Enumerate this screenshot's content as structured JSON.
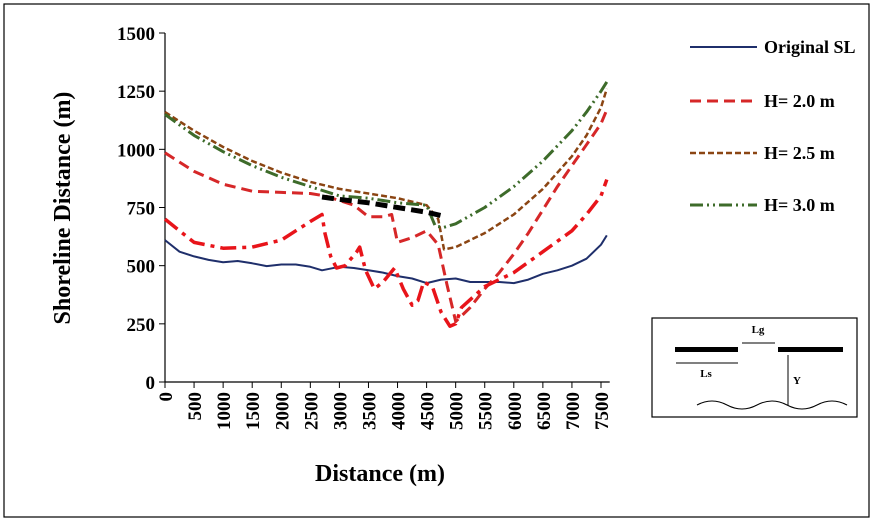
{
  "chart_data": {
    "type": "line",
    "xlabel": "Distance (m)",
    "ylabel": "Shoreline Distance (m)",
    "xlim": [
      0,
      7650
    ],
    "ylim": [
      0,
      1500
    ],
    "xticks": [
      0,
      500,
      1000,
      1500,
      2000,
      2500,
      3000,
      3500,
      4000,
      4500,
      5000,
      5500,
      6000,
      6500,
      7000,
      7500
    ],
    "yticks": [
      0,
      250,
      500,
      750,
      1000,
      1250,
      1500
    ],
    "series": [
      {
        "name": "Original SL",
        "color": "#1f2f6b",
        "style": "solid",
        "x": [
          0,
          250,
          500,
          750,
          1000,
          1250,
          1500,
          1750,
          2000,
          2250,
          2500,
          2700,
          3000,
          3250,
          3500,
          3750,
          4000,
          4250,
          4500,
          4750,
          5000,
          5250,
          5500,
          5750,
          6000,
          6250,
          6500,
          6750,
          7000,
          7250,
          7500,
          7600
        ],
        "values": [
          610,
          560,
          540,
          525,
          515,
          520,
          510,
          498,
          505,
          505,
          495,
          480,
          495,
          490,
          480,
          470,
          455,
          445,
          425,
          440,
          445,
          430,
          430,
          430,
          425,
          440,
          465,
          480,
          500,
          530,
          590,
          630
        ]
      },
      {
        "name": "H= 2.0 m",
        "color": "#d62728",
        "style": "dashed",
        "x": [
          0,
          500,
          1000,
          1500,
          2000,
          2500,
          2750,
          3000,
          3250,
          3500,
          3750,
          3900,
          4000,
          4250,
          4500,
          4700,
          4850,
          5000,
          5250,
          5500,
          5750,
          6000,
          6250,
          6500,
          6750,
          7000,
          7250,
          7500,
          7600
        ],
        "values": [
          985,
          905,
          850,
          820,
          815,
          810,
          800,
          780,
          760,
          710,
          710,
          720,
          600,
          620,
          650,
          590,
          420,
          260,
          320,
          400,
          470,
          550,
          640,
          740,
          840,
          930,
          1020,
          1110,
          1170
        ]
      },
      {
        "color": "#e8141a",
        "style": "dashdot",
        "x": [
          0,
          250,
          500,
          1000,
          1500,
          2000,
          2500,
          2700,
          2750,
          2850,
          2950,
          3100,
          3300,
          3350,
          3450,
          3600,
          3750,
          3950,
          4100,
          4250,
          4350,
          4450,
          4600,
          4750,
          4900,
          5000,
          5100,
          5500,
          6000,
          6500,
          7000,
          7250,
          7500,
          7600
        ],
        "values": [
          700,
          650,
          600,
          575,
          580,
          610,
          690,
          720,
          640,
          540,
          490,
          500,
          560,
          580,
          480,
          400,
          430,
          490,
          400,
          330,
          350,
          430,
          410,
          300,
          240,
          250,
          320,
          410,
          470,
          560,
          650,
          720,
          800,
          870
        ]
      },
      {
        "name": "H= 2.5 m",
        "color": "#8b4513",
        "style": "dotted",
        "x": [
          0,
          500,
          1000,
          1500,
          2000,
          2500,
          3000,
          3500,
          4000,
          4500,
          4700,
          4800,
          5000,
          5500,
          6000,
          6500,
          7000,
          7250,
          7500,
          7600
        ],
        "values": [
          1160,
          1080,
          1010,
          950,
          900,
          860,
          830,
          810,
          790,
          760,
          700,
          570,
          580,
          640,
          720,
          830,
          970,
          1060,
          1180,
          1260
        ]
      },
      {
        "name": "H= 3.0 m",
        "color": "#3d6b2a",
        "style": "dashdotdot",
        "x": [
          0,
          500,
          1000,
          1500,
          2000,
          2500,
          3000,
          3500,
          4000,
          4500,
          4650,
          4800,
          5000,
          5500,
          6000,
          6500,
          7000,
          7250,
          7500,
          7600
        ],
        "values": [
          1150,
          1060,
          990,
          930,
          880,
          840,
          800,
          790,
          770,
          760,
          670,
          665,
          680,
          750,
          840,
          950,
          1080,
          1160,
          1250,
          1290
        ]
      },
      {
        "color": "#000000",
        "style": "heavy",
        "x": [
          2700,
          3000,
          3500,
          4000,
          4500,
          4750
        ],
        "values": [
          795,
          785,
          770,
          750,
          730,
          715
        ]
      }
    ]
  },
  "inset": {
    "gap_label": "Lg",
    "length_label": "Ls",
    "distance_label": "Y"
  }
}
